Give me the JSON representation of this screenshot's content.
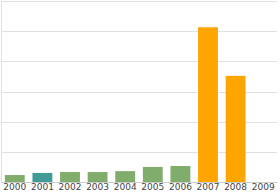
{
  "chart_data": {
    "type": "bar",
    "categories": [
      "2000",
      "2001",
      "2002",
      "2003",
      "2004",
      "2005",
      "2006",
      "2007",
      "2008",
      "2009"
    ],
    "values": [
      0.23,
      0.3,
      0.33,
      0.33,
      0.36,
      0.5,
      0.53,
      5.13,
      3.52,
      0
    ],
    "colors": [
      "#80ad6c",
      "#3f9a98",
      "#80ad6c",
      "#80ad6c",
      "#80ad6c",
      "#80ad6c",
      "#80ad6c",
      "#ffa500",
      "#ffa500",
      "#ffa500"
    ],
    "ylim": [
      0,
      6
    ],
    "yticks": [
      0,
      1,
      2,
      3,
      4,
      5,
      6
    ],
    "grid": true,
    "tick_labels": "x"
  }
}
